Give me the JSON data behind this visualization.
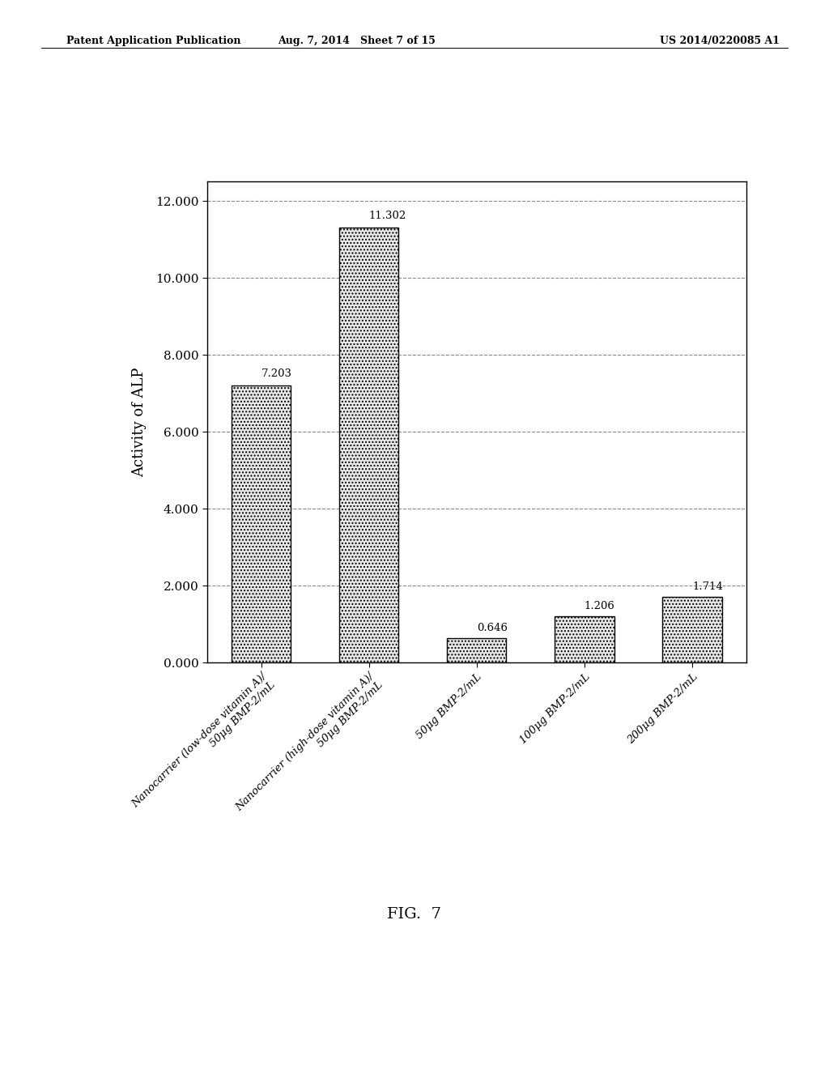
{
  "categories": [
    "Nanocarrier (low-dose vitamin A)/\n50μg BMP-2/mL",
    "Nanocarrier (high-dose vitamin A)/\n50μg BMP-2/mL",
    "50μg BMP-2/mL",
    "100μg BMP-2/mL",
    "200μg BMP-2/mL"
  ],
  "values": [
    7.203,
    11.302,
    0.646,
    1.206,
    1.714
  ],
  "bar_color": "#e8e8e8",
  "bar_edgecolor": "#000000",
  "bar_hatch": "....",
  "ylabel": "Activity of ALP",
  "ylim": [
    0,
    12.5
  ],
  "yticks": [
    0.0,
    2.0,
    4.0,
    6.0,
    8.0,
    10.0,
    12.0
  ],
  "ytick_labels": [
    "0.000",
    "2.000",
    "4.000",
    "6.000",
    "8.000",
    "10.000",
    "12.000"
  ],
  "value_labels": [
    "7.203",
    "11.302",
    "0.646",
    "1.206",
    "1.714"
  ],
  "fig_caption": "FIG.  7",
  "header_left": "Patent Application Publication",
  "header_center": "Aug. 7, 2014   Sheet 7 of 15",
  "header_right": "US 2014/0220085 A1",
  "background_color": "#ffffff",
  "bar_width": 0.55,
  "grid_color": "#888888",
  "grid_linestyle": "--",
  "tick_fontsize": 11,
  "label_fontsize": 13,
  "value_fontsize": 9.5,
  "xtick_fontsize": 9.5
}
